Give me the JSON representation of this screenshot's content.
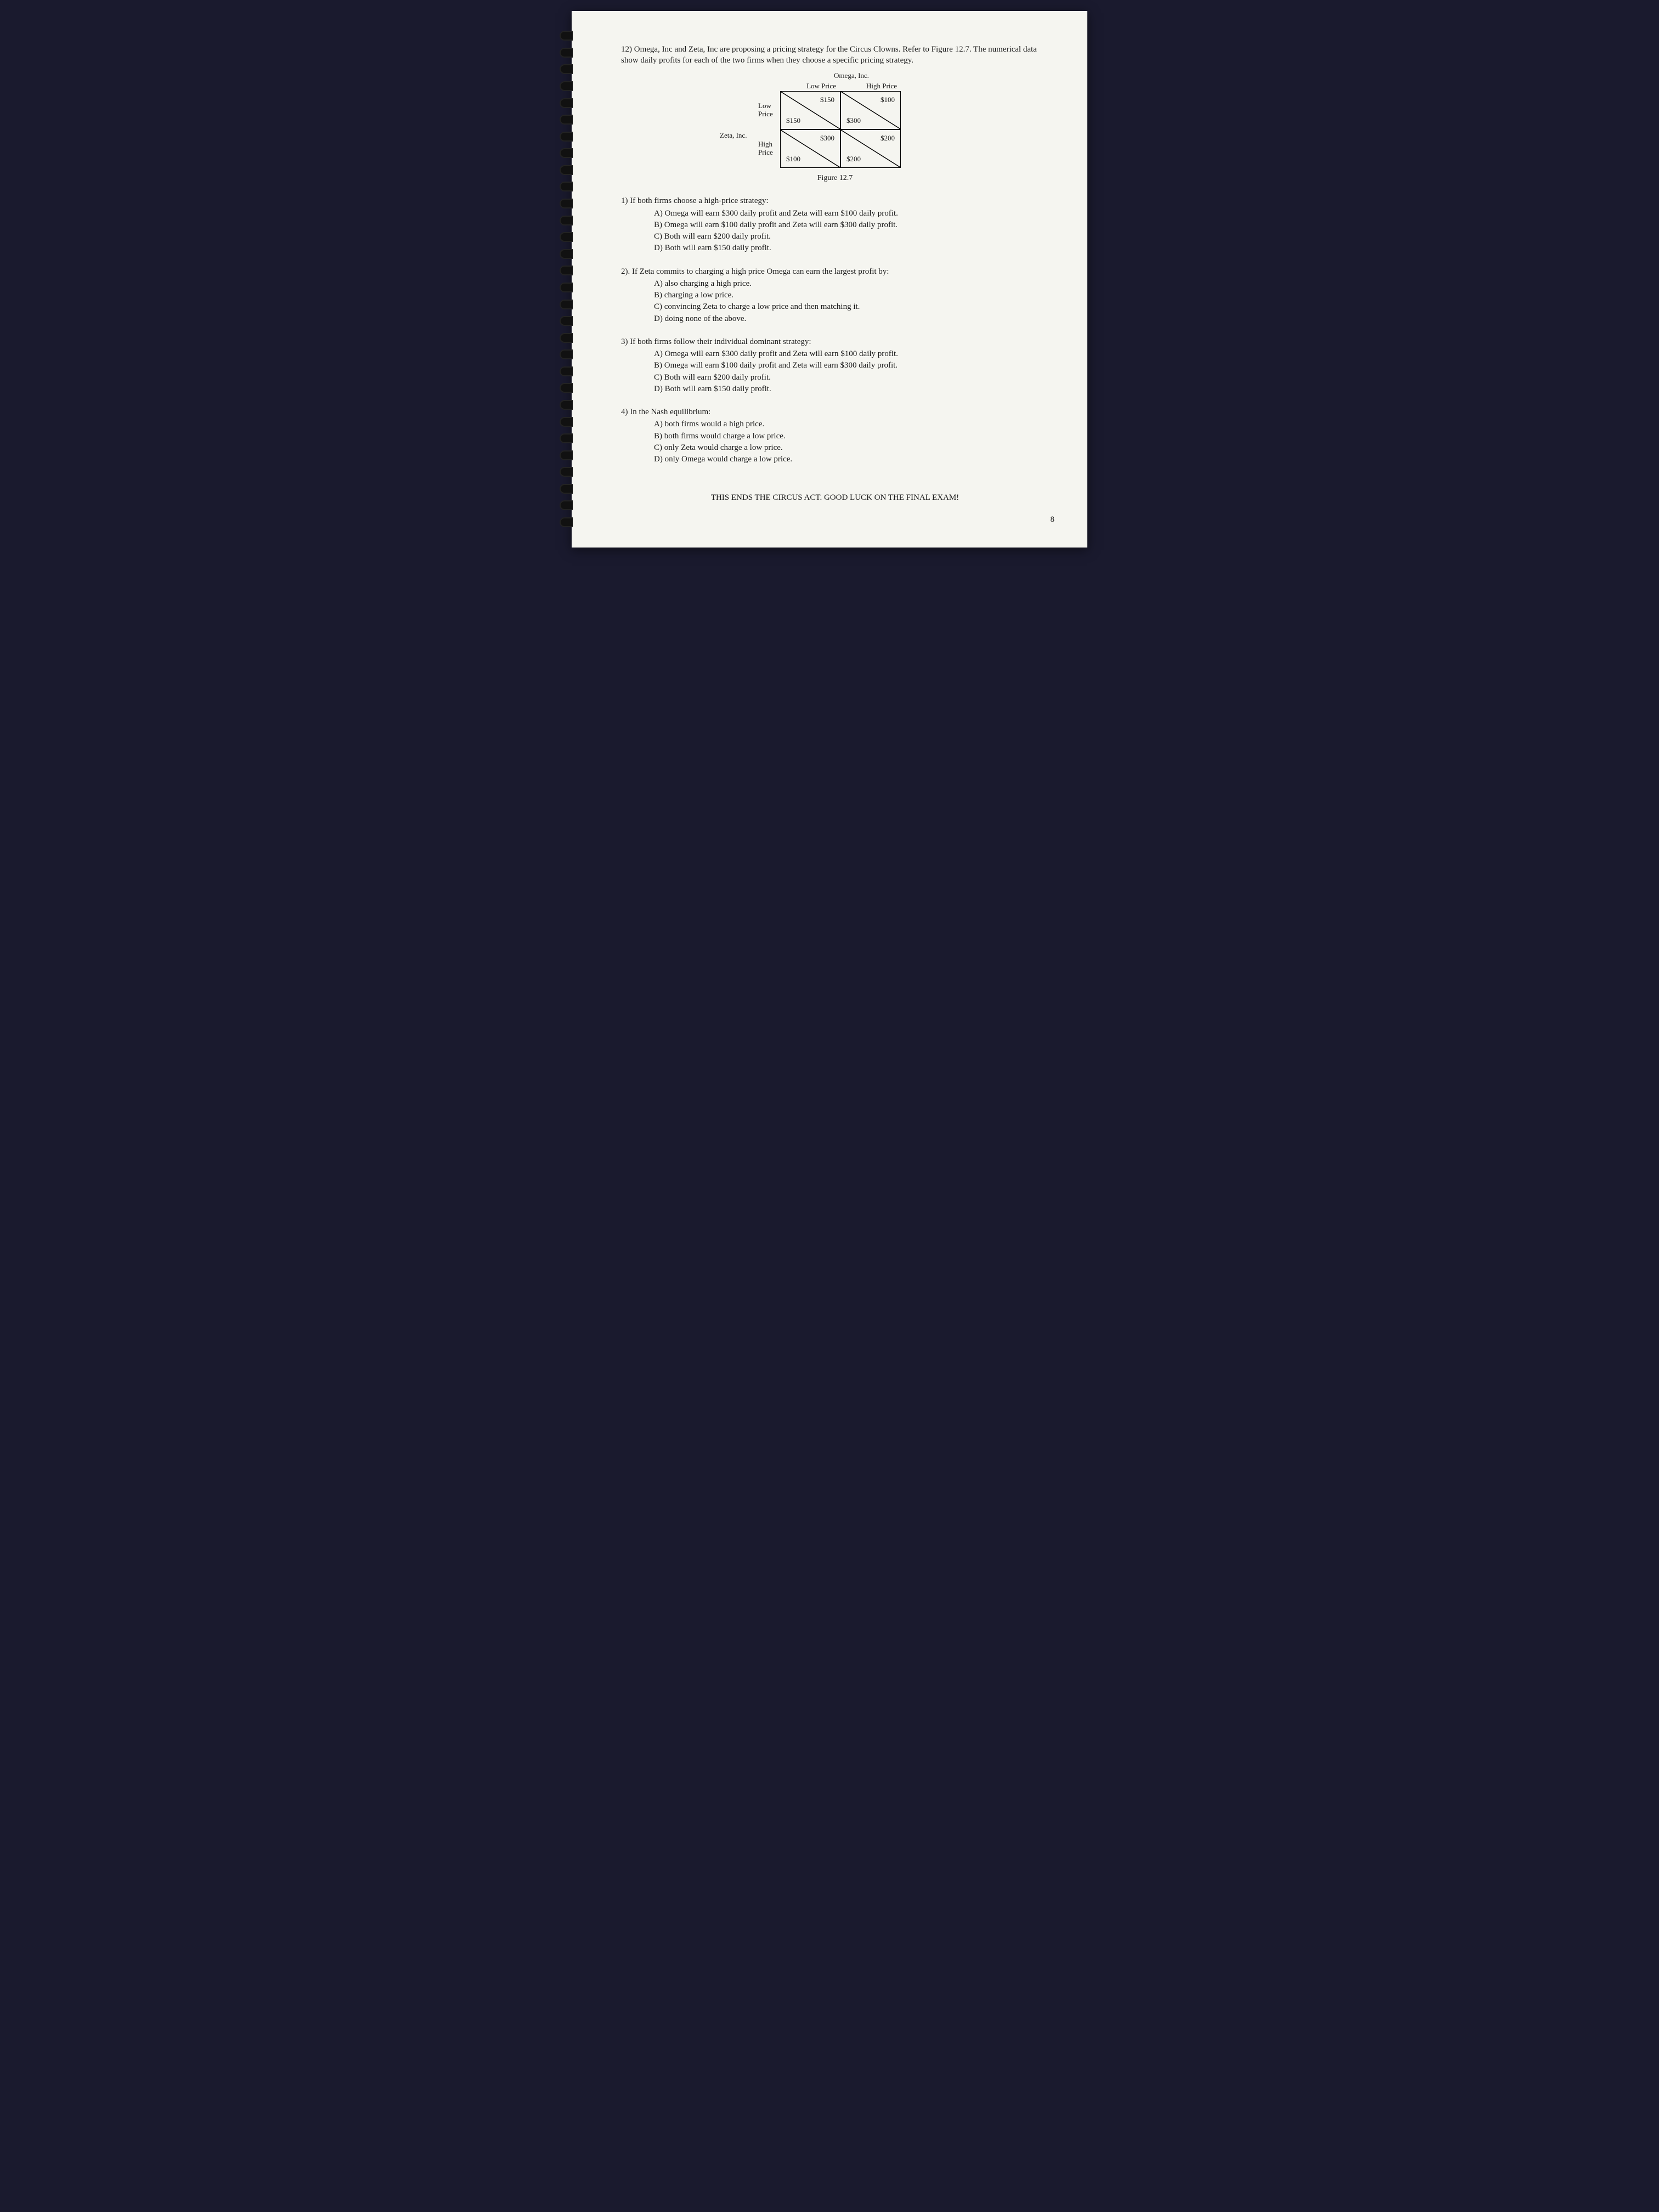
{
  "question": {
    "number": "12)",
    "intro": "Omega, Inc and Zeta, Inc are proposing a pricing strategy for the Circus Clowns. Refer to Figure 12.7. The numerical data show daily profits for each of the two firms when they choose a specific pricing strategy."
  },
  "matrix": {
    "col_player": "Omega, Inc.",
    "row_player": "Zeta, Inc.",
    "col_strategies": [
      "Low Price",
      "High Price"
    ],
    "row_strategies": [
      "Low Price",
      "High Price"
    ],
    "cells": [
      [
        {
          "omega": "$150",
          "zeta": "$150"
        },
        {
          "omega": "$100",
          "zeta": "$300"
        }
      ],
      [
        {
          "omega": "$300",
          "zeta": "$100"
        },
        {
          "omega": "$200",
          "zeta": "$200"
        }
      ]
    ],
    "caption": "Figure 12.7"
  },
  "subs": [
    {
      "num": "1)",
      "stem": "If both firms choose a high-price strategy:",
      "opts": [
        "A) Omega will earn $300 daily profit and Zeta will earn $100 daily profit.",
        "B) Omega will earn $100 daily profit and Zeta will earn $300 daily profit.",
        "C) Both will earn $200 daily profit.",
        "D) Both will earn $150 daily profit."
      ]
    },
    {
      "num": "2).",
      "stem": "If Zeta commits to charging a high price Omega can earn the largest profit by:",
      "opts": [
        "A) also charging a high price.",
        "B) charging a low price.",
        "C) convincing Zeta to charge a low price and then matching it.",
        "D) doing none of the above."
      ]
    },
    {
      "num": "3)",
      "stem": "If both firms follow their individual dominant strategy:",
      "opts": [
        "A) Omega will earn $300 daily profit and Zeta will earn $100 daily profit.",
        "B) Omega will earn $100 daily profit and Zeta will earn $300 daily profit.",
        "C) Both will earn $200 daily profit.",
        "D) Both will earn $150 daily profit."
      ]
    },
    {
      "num": "4)",
      "stem": "In the Nash equilibrium:",
      "opts": [
        "A) both firms would a high price.",
        "B) both firms would charge a low price.",
        "C) only Zeta would charge a low price.",
        "D) only Omega would charge a low price."
      ]
    }
  ],
  "footer": "THIS ENDS THE CIRCUS ACT. GOOD LUCK ON THE FINAL EXAM!",
  "page_number": "8"
}
